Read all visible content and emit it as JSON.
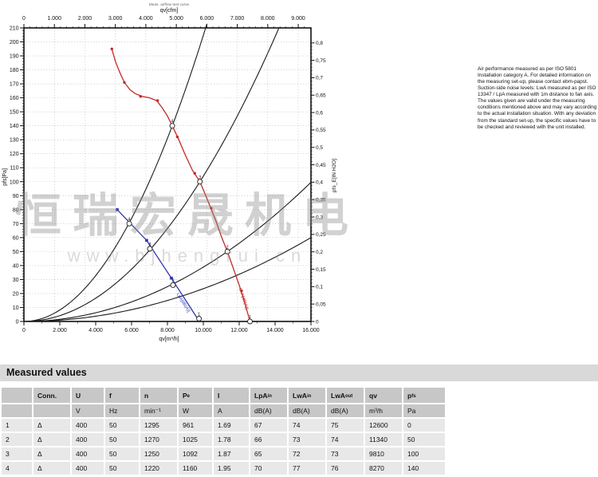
{
  "watermark": {
    "line1": "恒瑞宏晟机电",
    "line2": "www.bjhengrui.cn"
  },
  "note": {
    "text": "Air performance measured as per ISO 5801 Installation category A. For detailed information on the measuring set-up, please contact ebm-papst. Suction-side noise levels: LwA measured as per ISO 13347 / LpA measured with 1m distance to fan axis. The values given are valid under the measuring conditions mentioned above and may vary according to the actual installation situation. With any deviation from the standard set-up, the specific values have to be checked and reviewed with the unit installed."
  },
  "measured_values": {
    "title": "Measured values",
    "columns": [
      {
        "label": "",
        "sub": "",
        "unit": ""
      },
      {
        "label": "Conn.",
        "sub": "",
        "unit": ""
      },
      {
        "label": "U",
        "sub": "",
        "unit": "V"
      },
      {
        "label": "f",
        "sub": "",
        "unit": "Hz"
      },
      {
        "label": "n",
        "sub": "",
        "unit": "min⁻¹"
      },
      {
        "label": "P",
        "sub": "e",
        "unit": "W"
      },
      {
        "label": "I",
        "sub": "",
        "unit": "A"
      },
      {
        "label": "LpA",
        "sub": "in",
        "unit": "dB(A)"
      },
      {
        "label": "LwA",
        "sub": "in",
        "unit": "dB(A)"
      },
      {
        "label": "LwA",
        "sub": "out",
        "unit": "dB(A)"
      },
      {
        "label": "qv",
        "sub": "",
        "unit": "m³/h"
      },
      {
        "label": "p",
        "sub": "fs",
        "unit": "Pa"
      }
    ],
    "rows": [
      [
        "1",
        "Δ",
        "400",
        "50",
        "1295",
        "961",
        "1.69",
        "67",
        "74",
        "75",
        "12600",
        "0"
      ],
      [
        "2",
        "Δ",
        "400",
        "50",
        "1270",
        "1025",
        "1.78",
        "66",
        "73",
        "74",
        "11340",
        "50"
      ],
      [
        "3",
        "Δ",
        "400",
        "50",
        "1250",
        "1092",
        "1.87",
        "65",
        "72",
        "73",
        "9810",
        "100"
      ],
      [
        "4",
        "Δ",
        "400",
        "50",
        "1220",
        "1160",
        "1.95",
        "70",
        "77",
        "76",
        "8270",
        "140"
      ]
    ]
  },
  "chart_data": {
    "type": "line",
    "caption": "Meas. airflow test curve",
    "axes": {
      "top": {
        "label": "qv[cfm]",
        "m3h_per_cfm": 1.699,
        "ticks": [
          {
            "v": 0,
            "l": "0"
          },
          {
            "v": 1000,
            "l": "1.000"
          },
          {
            "v": 2000,
            "l": "2.000"
          },
          {
            "v": 3000,
            "l": "3.000"
          },
          {
            "v": 4000,
            "l": "4.000"
          },
          {
            "v": 5000,
            "l": "5.000"
          },
          {
            "v": 6000,
            "l": "6.000"
          },
          {
            "v": 7000,
            "l": "7.000"
          },
          {
            "v": 8000,
            "l": "8.000"
          },
          {
            "v": 9000,
            "l": "9.000"
          }
        ]
      },
      "bottom": {
        "label": "qv[m³/h]",
        "min": 0,
        "max": 16000,
        "ticks": [
          {
            "v": 0,
            "l": "0"
          },
          {
            "v": 2000,
            "l": "2.000"
          },
          {
            "v": 4000,
            "l": "4.000"
          },
          {
            "v": 6000,
            "l": "6.000"
          },
          {
            "v": 8000,
            "l": "8.000"
          },
          {
            "v": 10000,
            "l": "10.000"
          },
          {
            "v": 12000,
            "l": "12.000"
          },
          {
            "v": 14000,
            "l": "14.000"
          },
          {
            "v": 16000,
            "l": "16.000"
          }
        ]
      },
      "left": {
        "label": "pfs[Pa]",
        "min": 0,
        "max": 210,
        "step": 10
      },
      "right": {
        "label": "pfs_E[IN H2O]",
        "pa_per_unit": 249.09,
        "labels": [
          "0",
          "0,05",
          "0,1",
          "0,15",
          "0,2",
          "0,25",
          "0,3",
          "0,35",
          "0,4",
          "0,45",
          "0,5",
          "0,55",
          "0,6",
          "0,65",
          "0,7",
          "0,75",
          "0,8"
        ]
      }
    },
    "series": [
      {
        "name": "static-pressure-curve",
        "color": "#c62828",
        "points": [
          [
            4900,
            195
          ],
          [
            5100,
            186
          ],
          [
            5350,
            178
          ],
          [
            5600,
            171
          ],
          [
            5900,
            166
          ],
          [
            6200,
            163
          ],
          [
            6600,
            161
          ],
          [
            7000,
            160
          ],
          [
            7400,
            158
          ],
          [
            7700,
            153
          ],
          [
            8000,
            147
          ],
          [
            8270,
            140
          ],
          [
            8600,
            131
          ],
          [
            9000,
            119
          ],
          [
            9400,
            108
          ],
          [
            9810,
            100
          ],
          [
            10200,
            88
          ],
          [
            10700,
            72
          ],
          [
            11000,
            61
          ],
          [
            11340,
            50
          ],
          [
            11700,
            37
          ],
          [
            12000,
            26
          ],
          [
            12300,
            14
          ],
          [
            12600,
            0
          ]
        ],
        "dot_markers": [
          [
            4900,
            195
          ],
          [
            5600,
            171
          ],
          [
            6500,
            161
          ],
          [
            7450,
            158
          ],
          [
            8550,
            132
          ],
          [
            9520,
            106
          ],
          [
            10440,
            81
          ],
          [
            12130,
            22
          ]
        ]
      },
      {
        "name": "lpa-noise-curve",
        "color": "#2a35b0",
        "points": [
          [
            5200,
            80
          ],
          [
            6840,
            58
          ],
          [
            8220,
            31
          ],
          [
            9780,
            0
          ]
        ],
        "square_markers": [
          [
            5200,
            80
          ],
          [
            6840,
            58
          ],
          [
            8220,
            31
          ]
        ]
      }
    ],
    "system_curves": [
      {
        "name": "system-curve-4",
        "k_num": 140,
        "k_den": 8270
      },
      {
        "name": "system-curve-3",
        "k_num": 100,
        "k_den": 9810
      },
      {
        "name": "system-curve-2",
        "k_num": 50,
        "k_den": 11340
      },
      {
        "name": "system-curve-1",
        "k_num": 60,
        "k_den": 16000
      }
    ],
    "operating_points": [
      {
        "curve": "red",
        "label": "4",
        "q": 8270,
        "p": 140
      },
      {
        "curve": "red",
        "label": "3",
        "q": 9810,
        "p": 100
      },
      {
        "curve": "red",
        "label": "2",
        "q": 11340,
        "p": 50
      },
      {
        "curve": "red",
        "label": "1",
        "q": 12600,
        "p": 0
      },
      {
        "curve": "blue",
        "label": "4",
        "q": 5870,
        "p": 70
      },
      {
        "curve": "blue",
        "label": "3",
        "q": 7020,
        "p": 52
      },
      {
        "curve": "blue",
        "label": "2",
        "q": 8310,
        "p": 26
      },
      {
        "curve": "blue",
        "label": "1",
        "q": 9760,
        "p": 2
      }
    ],
    "curve_labels": [
      {
        "text": "LwA[dB(A)]",
        "color": "#c62828",
        "q": 12180,
        "p": 16,
        "angle": 72
      },
      {
        "text": "LpA[dB(A)]",
        "color": "#2a35b0",
        "q": 8830,
        "p": 13,
        "angle": 58
      }
    ]
  }
}
